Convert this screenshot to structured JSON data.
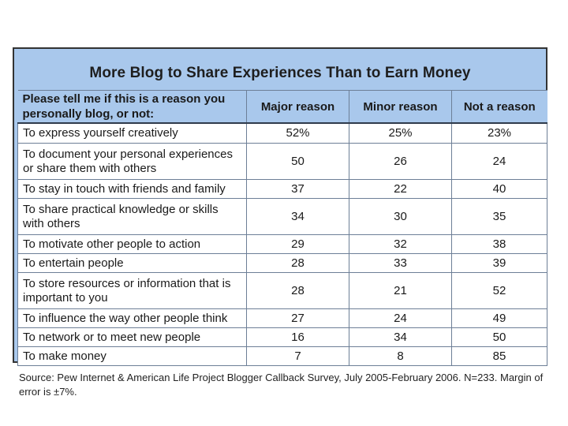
{
  "chart_data": {
    "type": "table",
    "title": "More Blog to Share Experiences Than to Earn Money",
    "question": "Please tell me if this is a reason you personally blog, or not:",
    "columns": [
      "Major reason",
      "Minor reason",
      "Not a reason"
    ],
    "rows": [
      {
        "reason": "To express yourself creatively",
        "values": [
          "52%",
          "25%",
          "23%"
        ]
      },
      {
        "reason": "To document your personal experiences or share them with others",
        "values": [
          "50",
          "26",
          "24"
        ]
      },
      {
        "reason": "To stay in touch with friends and family",
        "values": [
          "37",
          "22",
          "40"
        ]
      },
      {
        "reason": "To share practical knowledge or skills with others",
        "values": [
          "34",
          "30",
          "35"
        ]
      },
      {
        "reason": "To motivate other people to action",
        "values": [
          "29",
          "32",
          "38"
        ]
      },
      {
        "reason": "To entertain people",
        "values": [
          "28",
          "33",
          "39"
        ]
      },
      {
        "reason": "To store resources or information that is important to you",
        "values": [
          "28",
          "21",
          "52"
        ]
      },
      {
        "reason": "To influence the way other people think",
        "values": [
          "27",
          "24",
          "49"
        ]
      },
      {
        "reason": "To network or to meet new people",
        "values": [
          "16",
          "34",
          "50"
        ]
      },
      {
        "reason": "To make money",
        "values": [
          "7",
          "8",
          "85"
        ]
      }
    ],
    "source": "Source: Pew Internet & American Life Project Blogger Callback Survey, July 2005-February 2006. N=233. Margin of error is ±7%."
  }
}
